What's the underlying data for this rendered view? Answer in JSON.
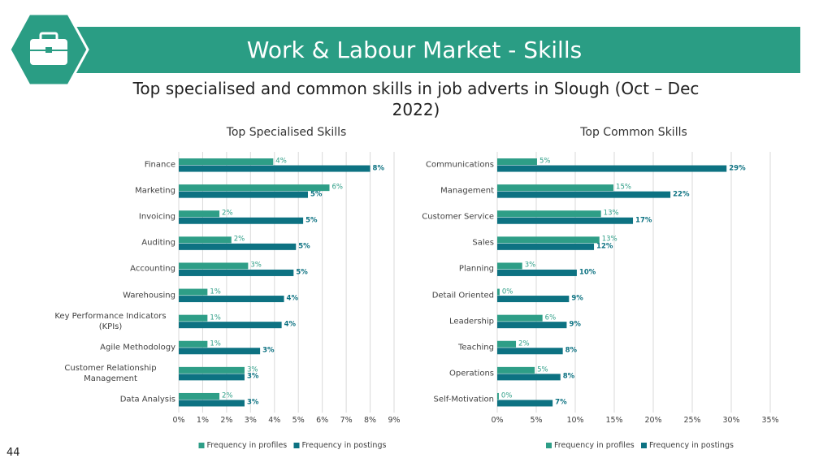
{
  "header": {
    "title": "Work & Labour Market - Skills",
    "subtitle": "Top specialised and common skills in job adverts in Slough (Oct – Dec 2022)"
  },
  "page_number": "44",
  "chart_data": [
    {
      "type": "bar",
      "orientation": "horizontal",
      "title": "Top Specialised Skills",
      "categories": [
        "Finance",
        "Marketing",
        "Invoicing",
        "Auditing",
        "Accounting",
        "Warehousing",
        "Key Performance Indicators (KPIs)",
        "Agile Methodology",
        "Customer Relationship Management",
        "Data Analysis"
      ],
      "series": [
        {
          "name": "Frequency in profiles",
          "color": "#2e9e87",
          "values": [
            3.95,
            6.3,
            1.7,
            2.2,
            2.9,
            1.2,
            1.2,
            1.2,
            2.75,
            1.7
          ],
          "value_labels": [
            "4%",
            "6%",
            "2%",
            "2%",
            "3%",
            "1%",
            "1%",
            "1%",
            "3%",
            "2%"
          ]
        },
        {
          "name": "Frequency in postings",
          "color": "#0d7282",
          "values": [
            8.0,
            5.4,
            5.2,
            4.9,
            4.8,
            4.4,
            4.3,
            3.4,
            2.75,
            2.75
          ],
          "value_labels": [
            "8%",
            "5%",
            "5%",
            "5%",
            "5%",
            "4%",
            "4%",
            "3%",
            "3%",
            "3%"
          ]
        }
      ],
      "xlim": [
        0,
        9
      ],
      "xticks": [
        {
          "value": 0,
          "label": "0%"
        },
        {
          "value": 1,
          "label": "1%"
        },
        {
          "value": 2,
          "label": "2%"
        },
        {
          "value": 3,
          "label": "3%"
        },
        {
          "value": 4,
          "label": "4%"
        },
        {
          "value": 5,
          "label": "5%"
        },
        {
          "value": 6,
          "label": "6%"
        },
        {
          "value": 7,
          "label": "7%"
        },
        {
          "value": 8,
          "label": "8%"
        },
        {
          "value": 9,
          "label": "9%"
        }
      ],
      "grid": true,
      "legend": "bottom"
    },
    {
      "type": "bar",
      "orientation": "horizontal",
      "title": "Top Common Skills",
      "categories": [
        "Communications",
        "Management",
        "Customer Service",
        "Sales",
        "Planning",
        "Detail Oriented",
        "Leadership",
        "Teaching",
        "Operations",
        "Self-Motivation"
      ],
      "series": [
        {
          "name": "Frequency in profiles",
          "color": "#2e9e87",
          "values": [
            5.1,
            14.9,
            13.3,
            13.1,
            3.2,
            0.3,
            5.8,
            2.4,
            4.8,
            0.2
          ],
          "value_labels": [
            "5%",
            "15%",
            "13%",
            "13%",
            "3%",
            "0%",
            "6%",
            "2%",
            "5%",
            "0%"
          ]
        },
        {
          "name": "Frequency in postings",
          "color": "#0d7282",
          "values": [
            29.4,
            22.2,
            17.4,
            12.4,
            10.2,
            9.2,
            8.9,
            8.4,
            8.1,
            7.1
          ],
          "value_labels": [
            "29%",
            "22%",
            "17%",
            "12%",
            "10%",
            "9%",
            "9%",
            "8%",
            "8%",
            "7%"
          ]
        }
      ],
      "xlim": [
        0,
        35
      ],
      "xticks": [
        {
          "value": 0,
          "label": "0%"
        },
        {
          "value": 5,
          "label": "5%"
        },
        {
          "value": 10,
          "label": "10%"
        },
        {
          "value": 15,
          "label": "15%"
        },
        {
          "value": 20,
          "label": "20%"
        },
        {
          "value": 25,
          "label": "25%"
        },
        {
          "value": 30,
          "label": "30%"
        },
        {
          "value": 35,
          "label": "35%"
        }
      ],
      "grid": true,
      "legend": "bottom"
    }
  ]
}
